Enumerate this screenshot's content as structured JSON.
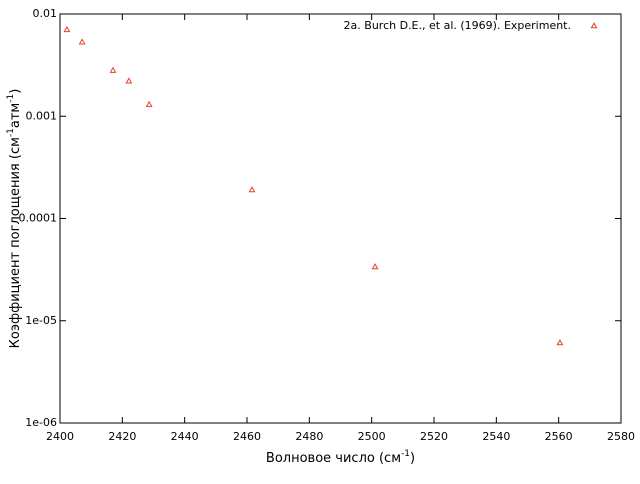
{
  "chart_data": {
    "type": "scatter",
    "x_label": [
      "Волновое число (см",
      "-1",
      ")"
    ],
    "y_label": [
      "Коэффициент поглощения (см",
      "-1",
      "атм",
      "-1",
      ")"
    ],
    "series": [
      {
        "name": "2a. Burch D.E., et al. (1969). Experiment.",
        "color": "#e8402a",
        "x": [
          2402.2,
          2407.1,
          2417,
          2422.1,
          2428.6,
          2461.6,
          2501.1,
          2560.4
        ],
        "values": [
          0.007,
          0.0053,
          0.0028,
          0.0022,
          0.0013,
          0.00019,
          3.36e-05,
          6.06e-06
        ]
      }
    ],
    "xlim": [
      2400,
      2580
    ],
    "xticks": [
      2400,
      2420,
      2440,
      2460,
      2480,
      2500,
      2520,
      2540,
      2560,
      2580
    ],
    "ylim": [
      1e-06,
      0.01
    ],
    "y_log": true,
    "yticks": [
      0.01,
      0.001,
      0.0001,
      {
        "value": 1e-05,
        "label": "1e-05"
      },
      {
        "value": 1e-06,
        "label": "1e-06"
      }
    ],
    "legend": "top-right",
    "grid": false
  }
}
